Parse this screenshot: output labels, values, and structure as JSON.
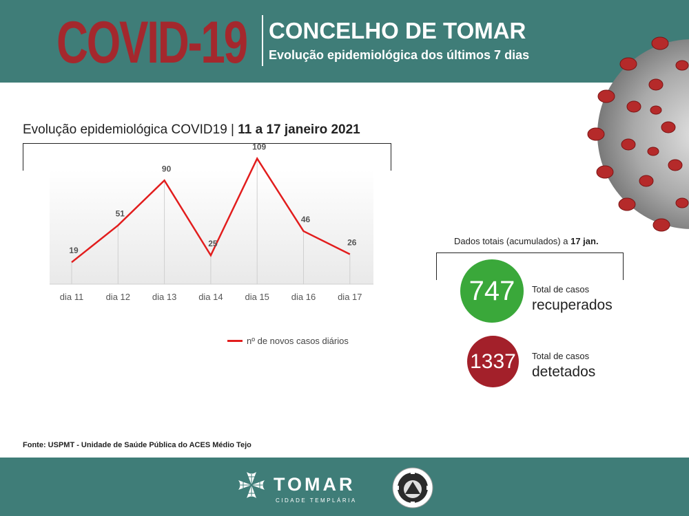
{
  "header": {
    "covid_title": "COVID-19",
    "title": "CONCELHO DE TOMAR",
    "subtitle": "Evolução epidemiológica dos últimos 7 dias"
  },
  "chart_section": {
    "title_prefix": "Evolução epidemiológica COVID19 | ",
    "title_bold": "11 a 17 janeiro 2021"
  },
  "chart_data": {
    "type": "line",
    "categories": [
      "dia 11",
      "dia 12",
      "dia 13",
      "dia 14",
      "dia 15",
      "dia 16",
      "dia 17"
    ],
    "series": [
      {
        "name": "nº de novos casos diários",
        "values": [
          19,
          51,
          90,
          25,
          109,
          46,
          26
        ],
        "color": "#e21d1d"
      }
    ],
    "ylim": [
      0,
      120
    ],
    "data_labels": true,
    "legend_position": "bottom"
  },
  "totals": {
    "title_prefix": "Dados totais (acumulados) a ",
    "title_bold": "17 jan.",
    "recovered": {
      "value": "747",
      "label_small": "Total de casos",
      "label_big": "recuperados",
      "color": "#3aa83a"
    },
    "detected": {
      "value": "1337",
      "label_small": "Total de casos",
      "label_big": "detetados",
      "color": "#a3202a"
    }
  },
  "source": "Fonte: USPMT - Unidade de Saúde Pública do ACES Médio Tejo",
  "footer": {
    "brand": "TOMAR",
    "tagline": "CIDADE TEMPLÁRIA"
  },
  "icons": {
    "virus": "coronavirus-illustration",
    "templar_cross": "templar-cross-icon",
    "civil_protection": "civil-protection-emblem"
  },
  "colors": {
    "header_bg": "#3f7d78",
    "covid_title": "#a4282d",
    "line": "#e21d1d"
  }
}
